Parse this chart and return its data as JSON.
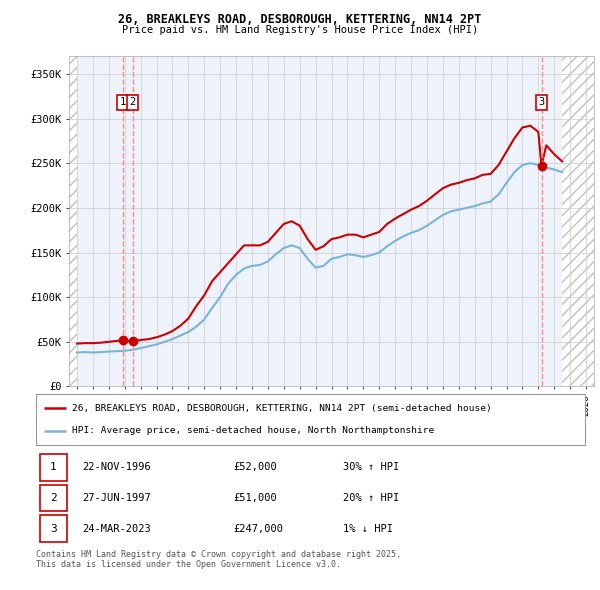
{
  "title_line1": "26, BREAKLEYS ROAD, DESBOROUGH, KETTERING, NN14 2PT",
  "title_line2": "Price paid vs. HM Land Registry's House Price Index (HPI)",
  "ylabel_ticks": [
    "£0",
    "£50K",
    "£100K",
    "£150K",
    "£200K",
    "£250K",
    "£300K",
    "£350K"
  ],
  "ytick_vals": [
    0,
    50000,
    100000,
    150000,
    200000,
    250000,
    300000,
    350000
  ],
  "ylim": [
    0,
    370000
  ],
  "xlim_start": 1993.5,
  "xlim_end": 2026.5,
  "hpi_color": "#7ab4d8",
  "price_color": "#cc0000",
  "transaction_marker_color": "#cc0000",
  "transactions": [
    {
      "num": 1,
      "date": "22-NOV-1996",
      "year": 1996.9,
      "price": 52000,
      "hpi_pct": "30% ↑ HPI"
    },
    {
      "num": 2,
      "date": "27-JUN-1997",
      "year": 1997.5,
      "price": 51000,
      "hpi_pct": "20% ↑ HPI"
    },
    {
      "num": 3,
      "date": "24-MAR-2023",
      "year": 2023.2,
      "price": 247000,
      "hpi_pct": "1% ↓ HPI"
    }
  ],
  "legend_line1": "26, BREAKLEYS ROAD, DESBOROUGH, KETTERING, NN14 2PT (semi-detached house)",
  "legend_line2": "HPI: Average price, semi-detached house, North Northamptonshire",
  "footnote": "Contains HM Land Registry data © Crown copyright and database right 2025.\nThis data is licensed under the Open Government Licence v3.0.",
  "pre_data_end_year": 1994.0,
  "post_data_start_year": 2024.5,
  "hpi_data": {
    "years": [
      1994.0,
      1994.5,
      1995.0,
      1995.5,
      1996.0,
      1996.5,
      1997.0,
      1997.5,
      1998.0,
      1998.5,
      1999.0,
      1999.5,
      2000.0,
      2000.5,
      2001.0,
      2001.5,
      2002.0,
      2002.5,
      2003.0,
      2003.5,
      2004.0,
      2004.5,
      2005.0,
      2005.5,
      2006.0,
      2006.5,
      2007.0,
      2007.5,
      2008.0,
      2008.5,
      2009.0,
      2009.5,
      2010.0,
      2010.5,
      2011.0,
      2011.5,
      2012.0,
      2012.5,
      2013.0,
      2013.5,
      2014.0,
      2014.5,
      2015.0,
      2015.5,
      2016.0,
      2016.5,
      2017.0,
      2017.5,
      2018.0,
      2018.5,
      2019.0,
      2019.5,
      2020.0,
      2020.5,
      2021.0,
      2021.5,
      2022.0,
      2022.5,
      2023.0,
      2023.5,
      2024.0,
      2024.5
    ],
    "values": [
      38000,
      38500,
      38000,
      38500,
      39000,
      39500,
      40000,
      41000,
      43000,
      45000,
      47000,
      50000,
      53000,
      57000,
      61000,
      67000,
      75000,
      88000,
      100000,
      115000,
      125000,
      132000,
      135000,
      136000,
      140000,
      148000,
      155000,
      158000,
      155000,
      143000,
      133000,
      135000,
      143000,
      145000,
      148000,
      147000,
      145000,
      147000,
      150000,
      157000,
      163000,
      168000,
      172000,
      175000,
      180000,
      186000,
      192000,
      196000,
      198000,
      200000,
      202000,
      205000,
      207000,
      215000,
      228000,
      240000,
      248000,
      250000,
      248000,
      245000,
      243000,
      240000
    ]
  },
  "price_data": {
    "years": [
      1994.0,
      1994.5,
      1995.0,
      1995.5,
      1996.0,
      1996.5,
      1996.9,
      1997.0,
      1997.5,
      1997.8,
      1998.0,
      1998.5,
      1999.0,
      1999.5,
      2000.0,
      2000.5,
      2001.0,
      2001.5,
      2002.0,
      2002.5,
      2003.0,
      2003.5,
      2004.0,
      2004.5,
      2005.0,
      2005.5,
      2006.0,
      2006.5,
      2007.0,
      2007.5,
      2008.0,
      2008.5,
      2009.0,
      2009.5,
      2010.0,
      2010.5,
      2011.0,
      2011.5,
      2012.0,
      2012.5,
      2013.0,
      2013.5,
      2014.0,
      2014.5,
      2015.0,
      2015.5,
      2016.0,
      2016.5,
      2017.0,
      2017.5,
      2018.0,
      2018.5,
      2019.0,
      2019.5,
      2020.0,
      2020.5,
      2021.0,
      2021.5,
      2022.0,
      2022.5,
      2023.0,
      2023.2,
      2023.5,
      2024.0,
      2024.5
    ],
    "values": [
      48000,
      48500,
      48500,
      49000,
      50000,
      51000,
      52000,
      51000,
      51000,
      51500,
      52000,
      53000,
      55000,
      58000,
      62000,
      68000,
      76000,
      90000,
      102000,
      118000,
      128000,
      138000,
      148000,
      158000,
      158000,
      158000,
      162000,
      172000,
      182000,
      185000,
      180000,
      165000,
      153000,
      157000,
      165000,
      167000,
      170000,
      170000,
      167000,
      170000,
      173000,
      182000,
      188000,
      193000,
      198000,
      202000,
      208000,
      215000,
      222000,
      226000,
      228000,
      231000,
      233000,
      237000,
      238000,
      248000,
      263000,
      278000,
      290000,
      292000,
      285000,
      247000,
      270000,
      260000,
      252000
    ]
  }
}
